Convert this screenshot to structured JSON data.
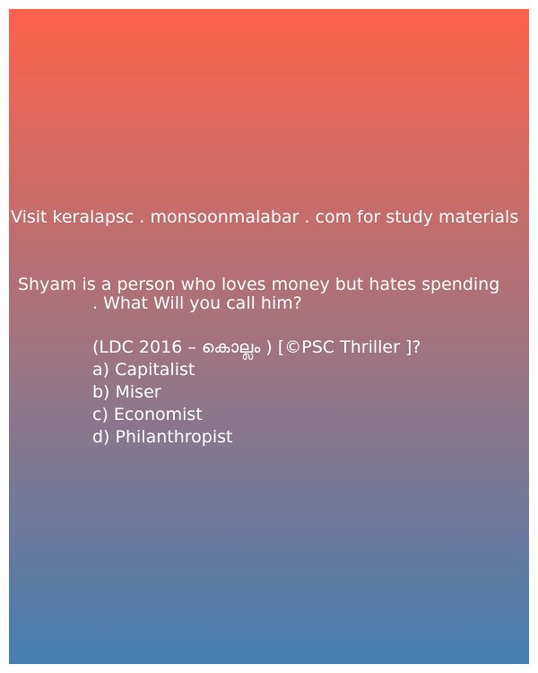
{
  "promo_text": "Visit keralapsc . monsoonmalabar . com for study materials",
  "question": {
    "line1": "Shyam is a person who loves money but hates spending",
    "line2": ". What Will you call him?"
  },
  "source": "(LDC   2016 – കൊല്ലം ) [©PSC Thriller ]?",
  "options": [
    "a) Capitalist",
    "b) Miser",
    "c) Economist",
    "d) Philanthropist"
  ],
  "colors": {
    "gradient_top": "#fe624a",
    "gradient_mid": "#a3737e",
    "gradient_bottom": "#457fb2",
    "text": "#ffffff"
  }
}
